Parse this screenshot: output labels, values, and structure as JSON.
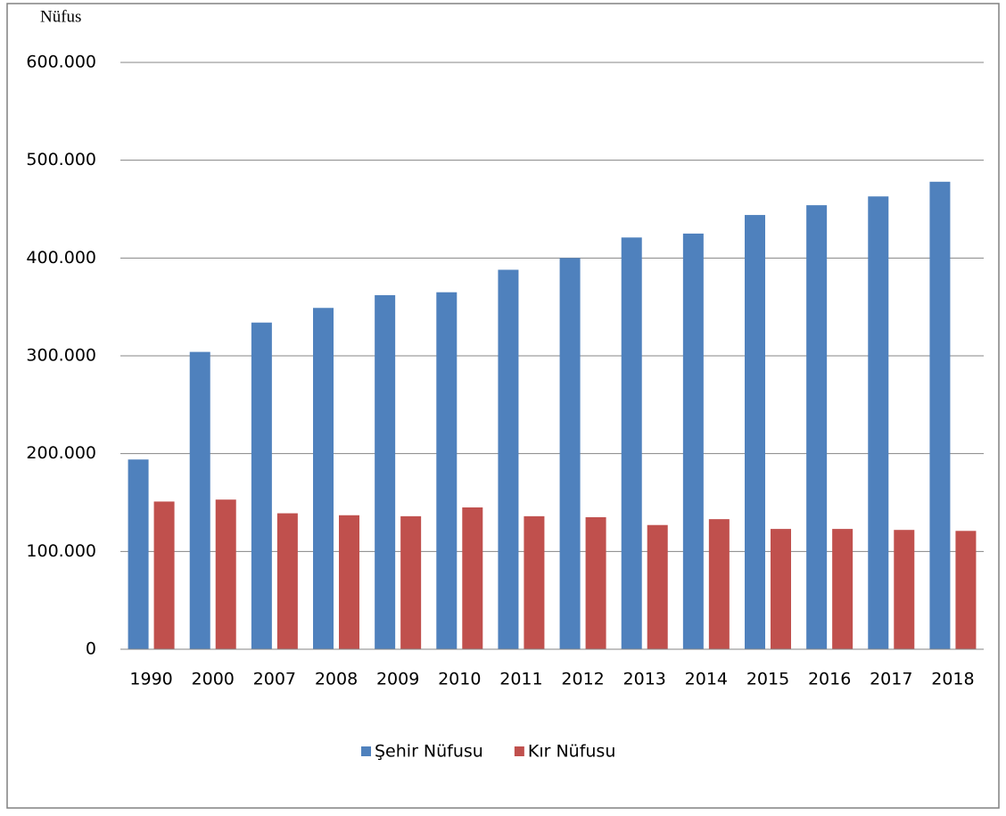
{
  "chart_data": {
    "type": "bar",
    "y_label": "Nüfus",
    "categories": [
      "1990",
      "2000",
      "2007",
      "2008",
      "2009",
      "2010",
      "2011",
      "2012",
      "2013",
      "2014",
      "2015",
      "2016",
      "2017",
      "2018"
    ],
    "series": [
      {
        "name": "Şehir Nüfusu",
        "color": "#4f81bd",
        "values": [
          194000,
          304000,
          334000,
          349000,
          362000,
          365000,
          388000,
          400000,
          421000,
          425000,
          444000,
          454000,
          463000,
          478000
        ]
      },
      {
        "name": "Kır Nüfusu",
        "color": "#c0504d",
        "values": [
          151000,
          153000,
          139000,
          137000,
          136000,
          145000,
          136000,
          135000,
          127000,
          133000,
          123000,
          123000,
          122000,
          121000
        ]
      }
    ],
    "ylim": [
      0,
      600000
    ],
    "yticks": [
      0,
      {
        "value": 100000,
        "label": "100.000"
      },
      {
        "value": 200000,
        "label": "200.000"
      },
      {
        "value": 300000,
        "label": "300.000"
      },
      {
        "value": 400000,
        "label": "400.000"
      },
      {
        "value": 500000,
        "label": "500.000"
      },
      {
        "value": 600000,
        "label": "600.000"
      }
    ],
    "grid": true,
    "legend": "bottom"
  }
}
